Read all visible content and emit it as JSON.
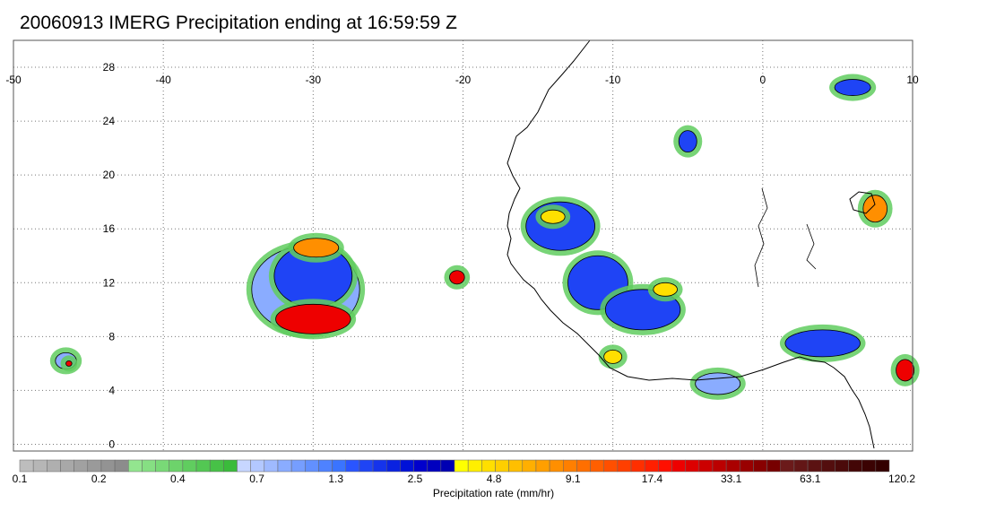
{
  "title": "20060913 IMERG Precipitation ending at 16:59:59 Z",
  "map": {
    "lon_range": [
      -50,
      10
    ],
    "lat_range": [
      -0.5,
      30
    ],
    "lon_ticks": [
      -50,
      -40,
      -30,
      -20,
      -10,
      0,
      10
    ],
    "lon_tick_labels": [
      "-50",
      "-40",
      "-30",
      "-20",
      "-10",
      "0",
      "10"
    ],
    "lat_ticks": [
      0,
      4,
      8,
      12,
      16,
      20,
      24,
      28
    ],
    "lat_tick_labels": [
      "0",
      "4",
      "8",
      "12",
      "16",
      "20",
      "24",
      "28"
    ],
    "gridlines": "dotted",
    "coastline_color": "#000000"
  },
  "colorbar": {
    "label": "Precipitation rate (mm/hr)",
    "tick_labels": [
      "0.1",
      "0.2",
      "0.4",
      "0.7",
      "1.3",
      "2.5",
      "4.8",
      "9.1",
      "17.4",
      "33.1",
      "63.1",
      "120.2"
    ],
    "colors": [
      "#bdbdbd",
      "#b6b6b6",
      "#afafaf",
      "#a8a8a8",
      "#a1a1a1",
      "#9a9a9a",
      "#939393",
      "#8c8c8c",
      "#93e58f",
      "#86df83",
      "#79d977",
      "#6dd36b",
      "#60cd5f",
      "#53c753",
      "#47c147",
      "#3abb3b",
      "#c7d6ff",
      "#b3c8ff",
      "#9fbaff",
      "#8aacff",
      "#769eff",
      "#6290ff",
      "#4e82ff",
      "#3a74ff",
      "#2a55ff",
      "#1f44f5",
      "#1533eb",
      "#0a22e1",
      "#0011d7",
      "#0000cc",
      "#0000bf",
      "#0000b2",
      "#ffff00",
      "#ffef00",
      "#ffdf00",
      "#ffcf00",
      "#ffbf00",
      "#ffaf00",
      "#ff9f00",
      "#ff8f00",
      "#ff7f00",
      "#ff6f00",
      "#ff5f00",
      "#ff4f00",
      "#ff3f00",
      "#ff2f00",
      "#ff1f00",
      "#ff0f00",
      "#ee0000",
      "#dd0000",
      "#cc0000",
      "#bb0000",
      "#aa0000",
      "#990000",
      "#880000",
      "#770000",
      "#6b1a1a",
      "#631616",
      "#5b1212",
      "#530e0e",
      "#4b0a0a",
      "#430606",
      "#3b0303",
      "#330000"
    ]
  },
  "precip_cells": [
    {
      "lon": -30.5,
      "lat": 11.5,
      "rx": 3.6,
      "ry": 3.2,
      "level": "light-blue"
    },
    {
      "lon": -30.0,
      "lat": 12.5,
      "rx": 2.6,
      "ry": 2.3,
      "level": "blue"
    },
    {
      "lon": -30.0,
      "lat": 9.3,
      "rx": 2.5,
      "ry": 1.1,
      "level": "red"
    },
    {
      "lon": -29.8,
      "lat": 14.6,
      "rx": 1.5,
      "ry": 0.7,
      "level": "orange"
    },
    {
      "lon": -20.4,
      "lat": 12.4,
      "rx": 0.5,
      "ry": 0.5,
      "level": "red"
    },
    {
      "lon": -13.5,
      "lat": 16.2,
      "rx": 2.3,
      "ry": 1.8,
      "level": "blue"
    },
    {
      "lon": -14.0,
      "lat": 16.9,
      "rx": 0.8,
      "ry": 0.5,
      "level": "yellow"
    },
    {
      "lon": -11.0,
      "lat": 12.0,
      "rx": 2.0,
      "ry": 2.0,
      "level": "blue"
    },
    {
      "lon": -8.0,
      "lat": 10.0,
      "rx": 2.5,
      "ry": 1.5,
      "level": "blue"
    },
    {
      "lon": -6.5,
      "lat": 11.5,
      "rx": 0.8,
      "ry": 0.5,
      "level": "yellow"
    },
    {
      "lon": -10.0,
      "lat": 6.5,
      "rx": 0.6,
      "ry": 0.5,
      "level": "yellow"
    },
    {
      "lon": -3.0,
      "lat": 4.5,
      "rx": 1.5,
      "ry": 0.8,
      "level": "light-blue"
    },
    {
      "lon": 4.0,
      "lat": 7.5,
      "rx": 2.5,
      "ry": 1.0,
      "level": "blue"
    },
    {
      "lon": 9.5,
      "lat": 5.5,
      "rx": 0.6,
      "ry": 0.8,
      "level": "red"
    },
    {
      "lon": 7.5,
      "lat": 17.5,
      "rx": 0.8,
      "ry": 1.0,
      "level": "orange"
    },
    {
      "lon": 6.0,
      "lat": 26.5,
      "rx": 1.2,
      "ry": 0.6,
      "level": "blue"
    },
    {
      "lon": -5.0,
      "lat": 22.5,
      "rx": 0.6,
      "ry": 0.8,
      "level": "blue"
    },
    {
      "lon": -46.5,
      "lat": 6.2,
      "rx": 0.7,
      "ry": 0.6,
      "level": "light-blue"
    },
    {
      "lon": -46.3,
      "lat": 6.0,
      "rx": 0.2,
      "ry": 0.2,
      "level": "red"
    }
  ]
}
